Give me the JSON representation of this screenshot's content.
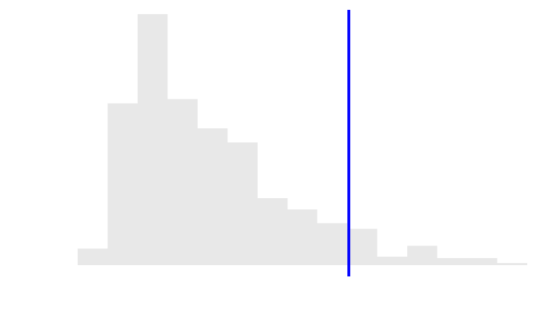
{
  "chart_data": {
    "type": "bar",
    "subtype": "histogram",
    "bins": [
      {
        "x0": 0,
        "x1": 1,
        "count": 6
      },
      {
        "x0": 1,
        "x1": 2,
        "count": 58
      },
      {
        "x0": 2,
        "x1": 3,
        "count": 90
      },
      {
        "x0": 3,
        "x1": 4,
        "count": 59.5
      },
      {
        "x0": 4,
        "x1": 5,
        "count": 49
      },
      {
        "x0": 5,
        "x1": 6,
        "count": 44
      },
      {
        "x0": 6,
        "x1": 7,
        "count": 24
      },
      {
        "x0": 7,
        "x1": 8,
        "count": 20
      },
      {
        "x0": 8,
        "x1": 9,
        "count": 15
      },
      {
        "x0": 9,
        "x1": 10,
        "count": 13
      },
      {
        "x0": 10,
        "x1": 11,
        "count": 3
      },
      {
        "x0": 11,
        "x1": 12,
        "count": 7
      },
      {
        "x0": 12,
        "x1": 13,
        "count": 2.5
      },
      {
        "x0": 13,
        "x1": 14,
        "count": 2.5
      },
      {
        "x0": 14,
        "x1": 15,
        "count": 0.8
      }
    ],
    "xlim": [
      0,
      15
    ],
    "ylim": [
      0,
      95
    ],
    "reference_line": {
      "x": 9,
      "color": "#0000ff"
    },
    "bar_color": "#e8e8e8",
    "grid": false,
    "axes_visible": false,
    "legend": "none"
  }
}
